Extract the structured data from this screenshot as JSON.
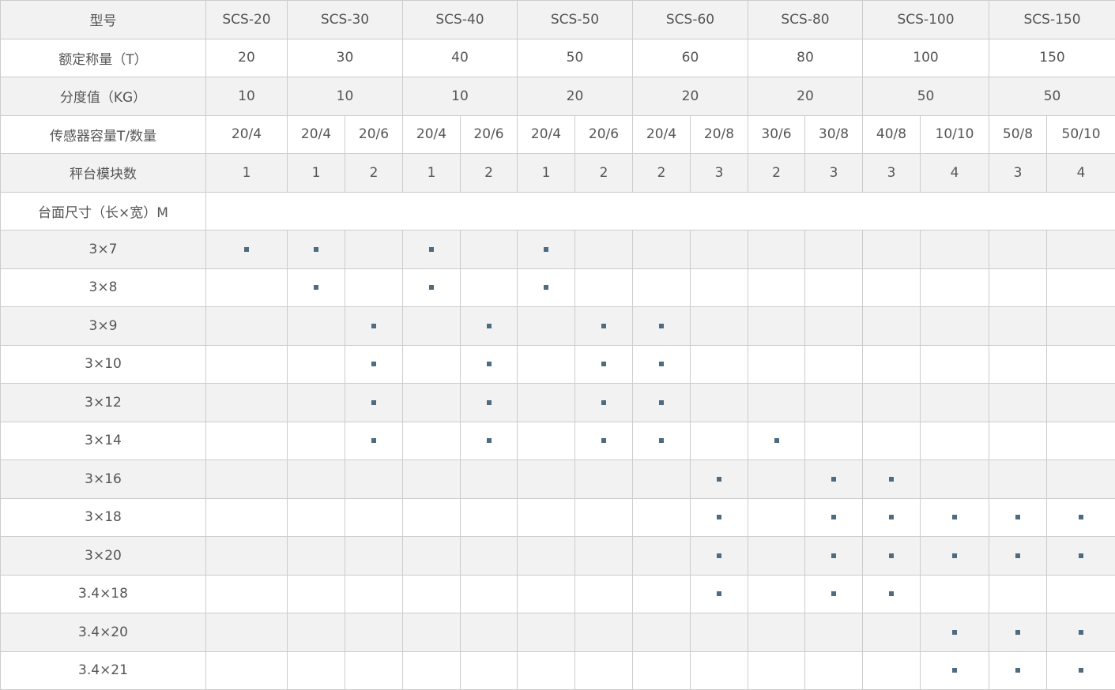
{
  "table": {
    "header_label": "型号",
    "models": [
      {
        "name": "SCS-20",
        "span": 1
      },
      {
        "name": "SCS-30",
        "span": 2
      },
      {
        "name": "SCS-40",
        "span": 2
      },
      {
        "name": "SCS-50",
        "span": 2
      },
      {
        "name": "SCS-60",
        "span": 2
      },
      {
        "name": "SCS-80",
        "span": 2
      },
      {
        "name": "SCS-100",
        "span": 2
      },
      {
        "name": "SCS-150",
        "span": 2
      }
    ],
    "rated_label": "额定称量（T）",
    "rated": [
      "20",
      "30",
      "40",
      "50",
      "60",
      "80",
      "100",
      "150"
    ],
    "division_label": "分度值（KG）",
    "division": [
      "10",
      "10",
      "10",
      "20",
      "20",
      "20",
      "50",
      "50"
    ],
    "sensor_label": "传感器容量T/数量",
    "sensor": [
      "20/4",
      "20/4",
      "20/6",
      "20/4",
      "20/6",
      "20/4",
      "20/6",
      "20/4",
      "20/8",
      "30/6",
      "30/8",
      "40/8",
      "10/10",
      "50/8",
      "50/10"
    ],
    "modules_label": "秤台模块数",
    "modules": [
      "1",
      "1",
      "2",
      "1",
      "2",
      "1",
      "2",
      "2",
      "3",
      "2",
      "3",
      "3",
      "4",
      "3",
      "4"
    ],
    "size_label": "台面尺寸（长×宽）M",
    "marker_color": "#4f6b80",
    "sizes": [
      {
        "size": "3×7",
        "marks": [
          0,
          1,
          3,
          5
        ]
      },
      {
        "size": "3×8",
        "marks": [
          1,
          3,
          5
        ]
      },
      {
        "size": "3×9",
        "marks": [
          2,
          4,
          6,
          7
        ]
      },
      {
        "size": "3×10",
        "marks": [
          2,
          4,
          6,
          7
        ]
      },
      {
        "size": "3×12",
        "marks": [
          2,
          4,
          6,
          7
        ]
      },
      {
        "size": "3×14",
        "marks": [
          2,
          4,
          6,
          7,
          9
        ]
      },
      {
        "size": "3×16",
        "marks": [
          8,
          10,
          11
        ]
      },
      {
        "size": "3×18",
        "marks": [
          8,
          10,
          11,
          12,
          13,
          14
        ]
      },
      {
        "size": "3×20",
        "marks": [
          8,
          10,
          11,
          12,
          13,
          14
        ]
      },
      {
        "size": "3.4×18",
        "marks": [
          8,
          10,
          11
        ]
      },
      {
        "size": "3.4×20",
        "marks": [
          12,
          13,
          14
        ]
      },
      {
        "size": "3.4×21",
        "marks": [
          12,
          13,
          14
        ]
      }
    ]
  }
}
